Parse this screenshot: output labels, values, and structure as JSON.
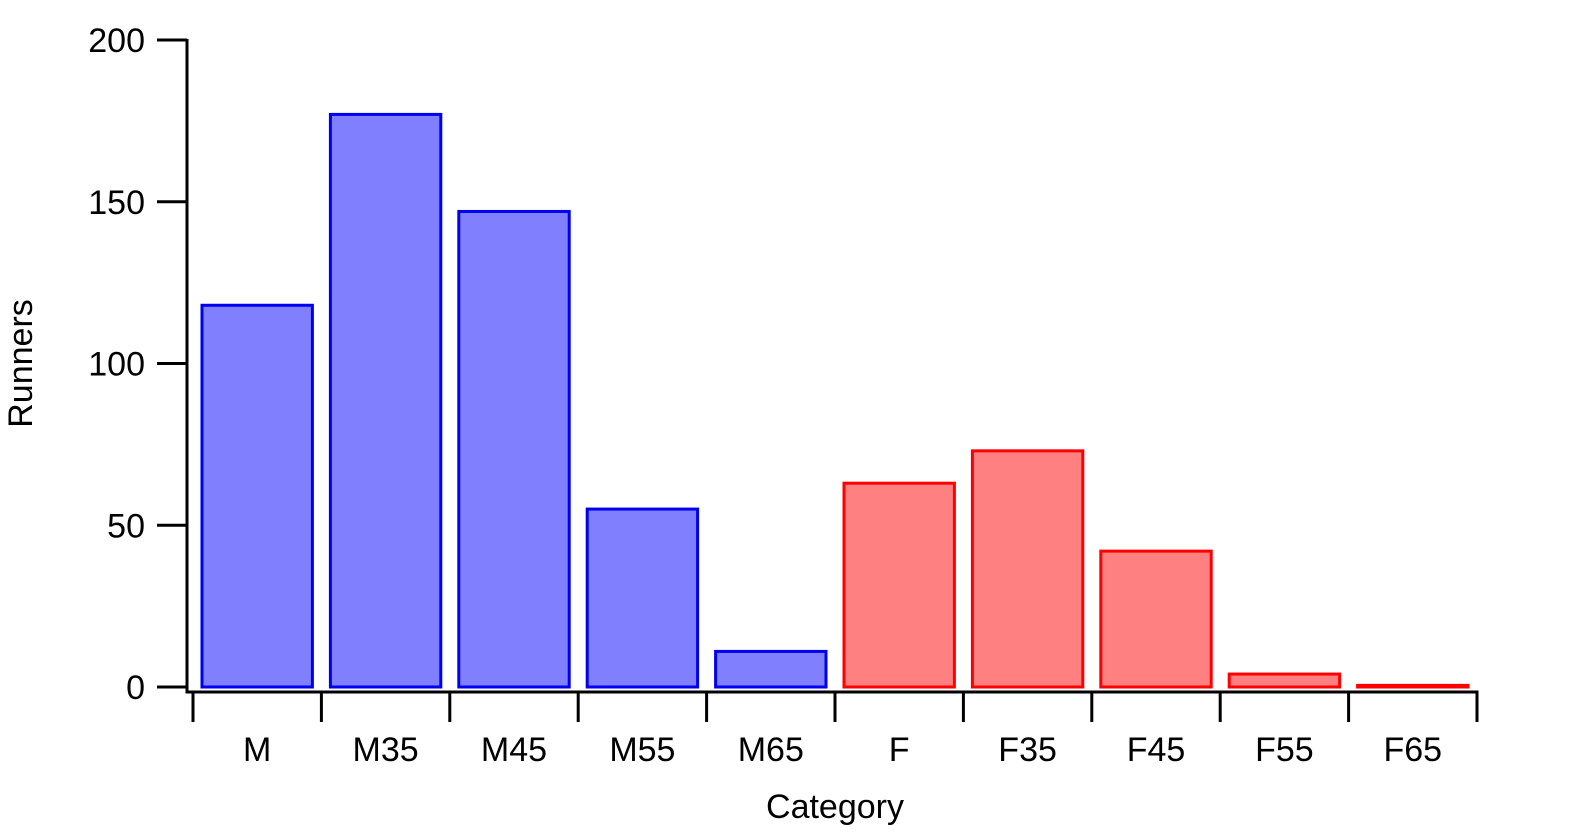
{
  "chart_data": {
    "type": "bar",
    "title": "",
    "xlabel": "Category",
    "ylabel": "Runners",
    "categories": [
      "M",
      "M35",
      "M45",
      "M55",
      "M65",
      "F",
      "F35",
      "F45",
      "F55",
      "F65"
    ],
    "values": [
      118,
      177,
      147,
      55,
      11,
      63,
      73,
      42,
      4,
      0.5
    ],
    "groups": [
      {
        "categories": [
          "M",
          "M35",
          "M45",
          "M55",
          "M65"
        ],
        "fill": "#8080ff",
        "stroke": "#0000ee"
      },
      {
        "categories": [
          "F",
          "F35",
          "F45",
          "F55",
          "F65"
        ],
        "fill": "#ff8080",
        "stroke": "#ff0000"
      }
    ],
    "ylim": [
      0,
      200
    ],
    "yticks": [
      0,
      50,
      100,
      150,
      200
    ],
    "grid": false,
    "legend": "none"
  }
}
